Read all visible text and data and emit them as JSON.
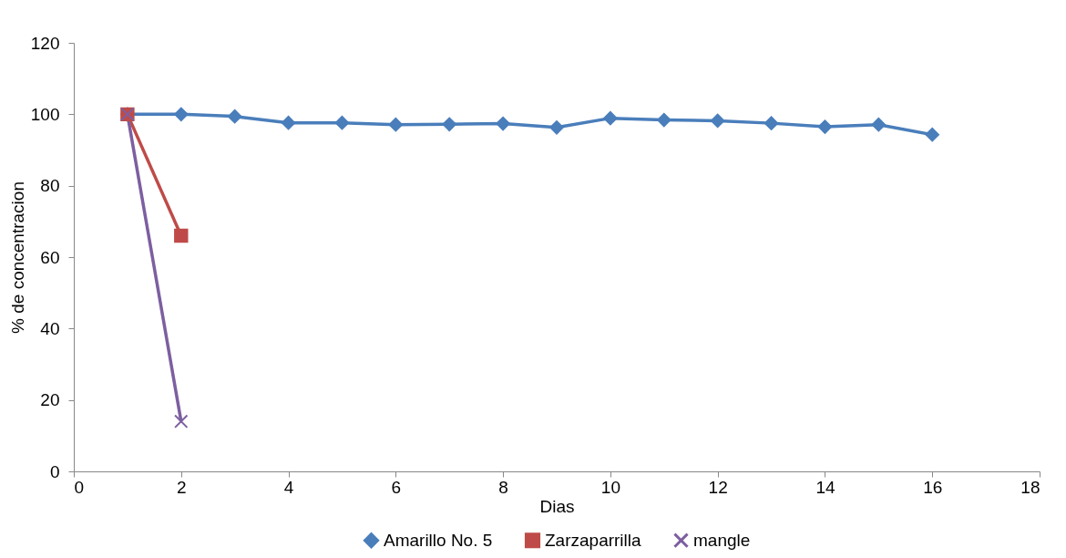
{
  "chart_data": {
    "type": "line",
    "xlabel": "Dias",
    "ylabel": "% de concentracion",
    "xlim": [
      0,
      18
    ],
    "xticks": [
      0,
      2,
      4,
      6,
      8,
      10,
      12,
      14,
      16,
      18
    ],
    "ylim": [
      0,
      120
    ],
    "yticks": [
      0,
      20,
      40,
      60,
      80,
      100,
      120
    ],
    "grid": false,
    "legend": "bottom",
    "series": [
      {
        "name": "Amarillo No. 5",
        "color": "#4a7ebb",
        "marker": "diamond",
        "x": [
          1,
          2,
          3,
          4,
          5,
          6,
          7,
          8,
          9,
          10,
          11,
          12,
          13,
          14,
          15,
          16
        ],
        "values": [
          100,
          100,
          99.4,
          97.6,
          97.6,
          97.1,
          97.2,
          97.4,
          96.3,
          98.9,
          98.4,
          98.2,
          97.5,
          96.5,
          97.1,
          94.3
        ]
      },
      {
        "name": "Zarzaparrilla",
        "color": "#be4b48",
        "marker": "square",
        "x": [
          1,
          2
        ],
        "values": [
          100,
          66
        ]
      },
      {
        "name": "mangle",
        "color": "#7d5fa0",
        "marker": "cross",
        "x": [
          1,
          2
        ],
        "values": [
          100,
          14
        ]
      }
    ]
  }
}
